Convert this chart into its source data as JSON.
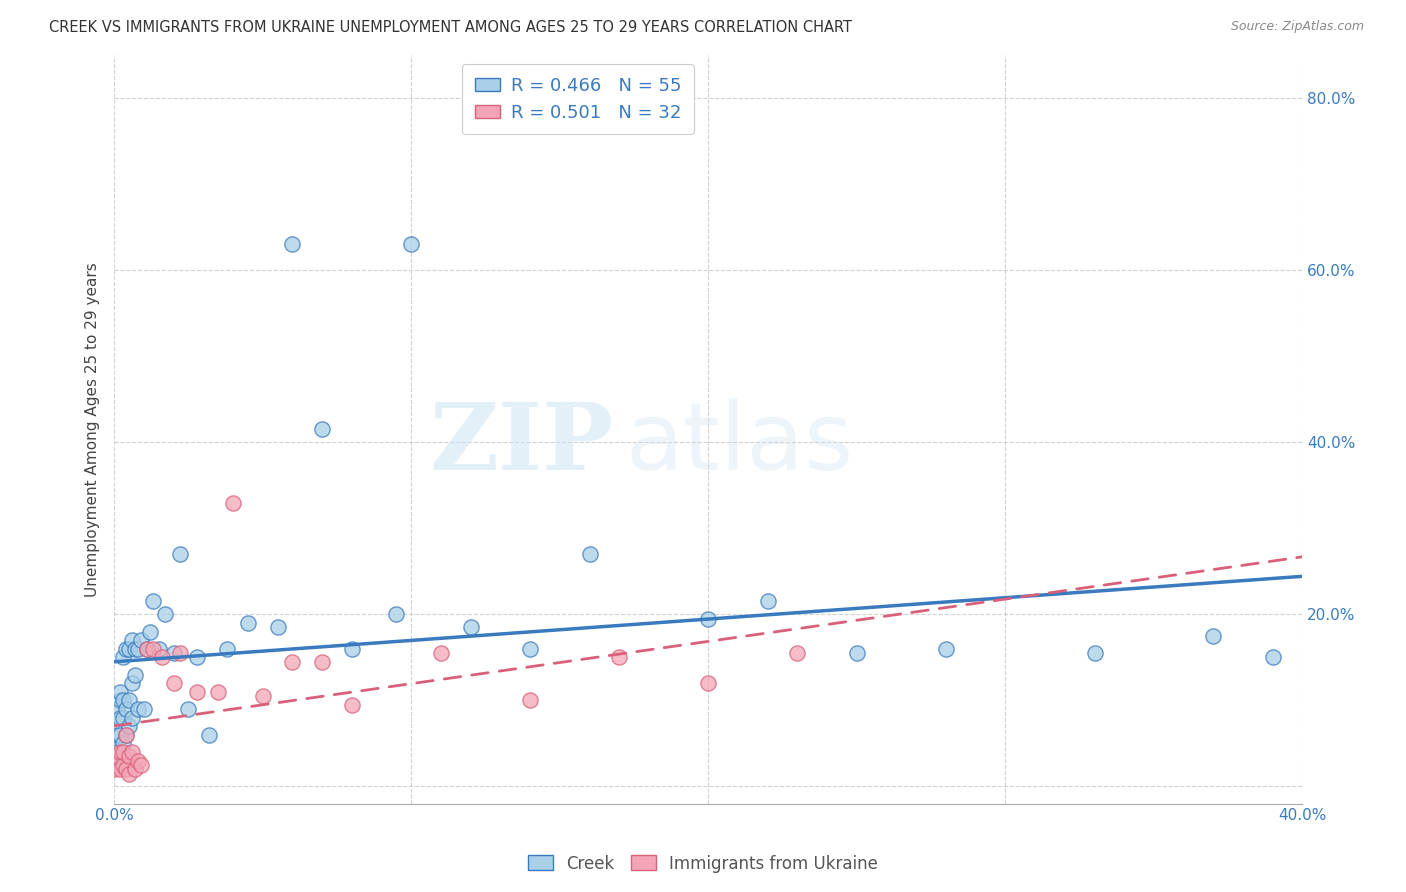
{
  "title": "CREEK VS IMMIGRANTS FROM UKRAINE UNEMPLOYMENT AMONG AGES 25 TO 29 YEARS CORRELATION CHART",
  "source": "Source: ZipAtlas.com",
  "ylabel": "Unemployment Among Ages 25 to 29 years",
  "legend_label1": "Creek",
  "legend_label2": "Immigrants from Ukraine",
  "r1": 0.466,
  "n1": 55,
  "r2": 0.501,
  "n2": 32,
  "color_creek": "#a8d0e8",
  "color_ukraine": "#f4a6b5",
  "color_creek_line": "#3a7abf",
  "color_ukraine_line": "#d9607a",
  "x_min": 0.0,
  "x_max": 0.4,
  "y_min": -0.02,
  "y_max": 0.85,
  "yticks": [
    0.0,
    0.2,
    0.4,
    0.6,
    0.8
  ],
  "xticks": [
    0.0,
    0.1,
    0.2,
    0.3,
    0.4
  ],
  "creek_x": [
    0.0,
    0.001,
    0.001,
    0.001,
    0.002,
    0.002,
    0.002,
    0.002,
    0.003,
    0.003,
    0.003,
    0.003,
    0.004,
    0.004,
    0.004,
    0.005,
    0.005,
    0.005,
    0.006,
    0.006,
    0.006,
    0.007,
    0.007,
    0.008,
    0.008,
    0.009,
    0.01,
    0.011,
    0.012,
    0.013,
    0.015,
    0.017,
    0.02,
    0.022,
    0.025,
    0.028,
    0.032,
    0.038,
    0.045,
    0.055,
    0.06,
    0.07,
    0.08,
    0.095,
    0.1,
    0.12,
    0.14,
    0.16,
    0.2,
    0.22,
    0.25,
    0.28,
    0.33,
    0.37,
    0.39
  ],
  "creek_y": [
    0.03,
    0.04,
    0.06,
    0.09,
    0.06,
    0.08,
    0.1,
    0.11,
    0.05,
    0.08,
    0.1,
    0.15,
    0.06,
    0.09,
    0.16,
    0.07,
    0.1,
    0.16,
    0.08,
    0.12,
    0.17,
    0.13,
    0.16,
    0.09,
    0.16,
    0.17,
    0.09,
    0.16,
    0.18,
    0.215,
    0.16,
    0.2,
    0.155,
    0.27,
    0.09,
    0.15,
    0.06,
    0.16,
    0.19,
    0.185,
    0.63,
    0.415,
    0.16,
    0.2,
    0.63,
    0.185,
    0.16,
    0.27,
    0.195,
    0.215,
    0.155,
    0.16,
    0.155,
    0.175,
    0.15
  ],
  "ukraine_x": [
    0.0,
    0.001,
    0.001,
    0.002,
    0.002,
    0.003,
    0.003,
    0.004,
    0.004,
    0.005,
    0.005,
    0.006,
    0.007,
    0.008,
    0.009,
    0.011,
    0.013,
    0.016,
    0.02,
    0.022,
    0.028,
    0.035,
    0.04,
    0.05,
    0.06,
    0.07,
    0.08,
    0.11,
    0.14,
    0.17,
    0.2,
    0.23
  ],
  "ukraine_y": [
    0.02,
    0.025,
    0.035,
    0.02,
    0.04,
    0.025,
    0.04,
    0.02,
    0.06,
    0.015,
    0.035,
    0.04,
    0.02,
    0.03,
    0.025,
    0.16,
    0.16,
    0.15,
    0.12,
    0.155,
    0.11,
    0.11,
    0.33,
    0.105,
    0.145,
    0.145,
    0.095,
    0.155,
    0.1,
    0.15,
    0.12,
    0.155
  ],
  "watermark_zip": "ZIP",
  "watermark_atlas": "atlas",
  "background_color": "#ffffff",
  "grid_color": "#cccccc"
}
